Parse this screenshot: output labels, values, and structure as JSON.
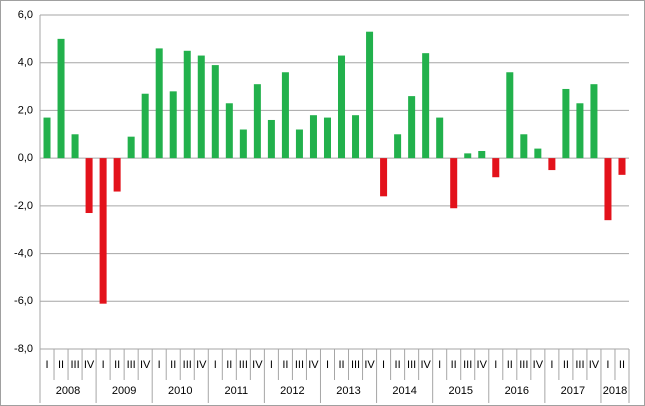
{
  "chart_data": {
    "type": "bar",
    "groups": [
      {
        "label": "2008",
        "categories": [
          "I",
          "II",
          "III",
          "IV"
        ]
      },
      {
        "label": "2009",
        "categories": [
          "I",
          "II",
          "III",
          "IV"
        ]
      },
      {
        "label": "2010",
        "categories": [
          "I",
          "II",
          "III",
          "IV"
        ]
      },
      {
        "label": "2011",
        "categories": [
          "I",
          "II",
          "III",
          "IV"
        ]
      },
      {
        "label": "2012",
        "categories": [
          "I",
          "II",
          "III",
          "IV"
        ]
      },
      {
        "label": "2013",
        "categories": [
          "I",
          "II",
          "III",
          "IV"
        ]
      },
      {
        "label": "2014",
        "categories": [
          "I",
          "II",
          "III",
          "IV"
        ]
      },
      {
        "label": "2015",
        "categories": [
          "I",
          "II",
          "III",
          "IV"
        ]
      },
      {
        "label": "2016",
        "categories": [
          "I",
          "II",
          "III",
          "IV"
        ]
      },
      {
        "label": "2017",
        "categories": [
          "I",
          "II",
          "III",
          "IV"
        ]
      },
      {
        "label": "2018",
        "categories": [
          "I",
          "II"
        ]
      }
    ],
    "values": [
      1.7,
      5.0,
      1.0,
      -2.3,
      -6.1,
      -1.4,
      0.9,
      2.7,
      4.6,
      2.8,
      4.5,
      4.3,
      3.9,
      2.3,
      1.2,
      3.1,
      1.6,
      3.6,
      1.2,
      1.8,
      1.7,
      4.3,
      1.8,
      5.3,
      -1.6,
      1.0,
      2.6,
      4.4,
      1.7,
      -2.1,
      0.2,
      0.3,
      -0.8,
      3.6,
      1.0,
      0.4,
      -0.5,
      2.9,
      2.3,
      3.1,
      -2.6,
      -0.7
    ],
    "color": "#22b14c",
    "negative_color": "#e3121b",
    "ylim": [
      -8,
      6
    ],
    "yticks": [
      {
        "value": -8,
        "label": "-8,0"
      },
      {
        "value": -6,
        "label": "-6,0"
      },
      {
        "value": -4,
        "label": "-4,0"
      },
      {
        "value": -2,
        "label": "-2,0"
      },
      {
        "value": 0,
        "label": "0,0"
      },
      {
        "value": 2,
        "label": "2,0"
      },
      {
        "value": 4,
        "label": "4,0"
      },
      {
        "value": 6,
        "label": "6,0"
      }
    ],
    "grid": true
  }
}
